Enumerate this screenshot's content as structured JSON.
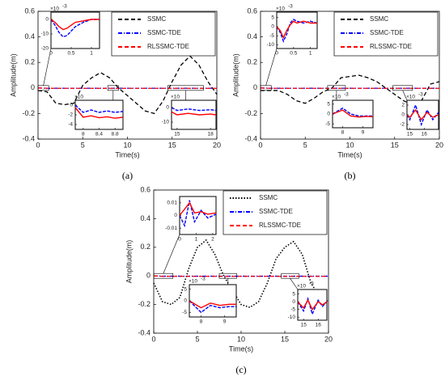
{
  "chart_data": [
    {
      "type": "line",
      "label": "(a)",
      "xlabel": "Time(s)",
      "ylabel": "Amplitude(m)",
      "x": [
        0,
        1,
        2,
        3,
        4,
        5,
        6,
        7,
        8,
        9,
        10,
        11,
        12,
        13,
        14,
        15,
        16,
        17,
        18,
        19,
        20
      ],
      "series": [
        {
          "name": "SSMC",
          "color": "#000000",
          "dash": "dashed",
          "values": [
            -0.02,
            -0.03,
            -0.12,
            -0.13,
            -0.12,
            0.02,
            0.08,
            0.12,
            0.08,
            0.0,
            -0.06,
            -0.12,
            -0.18,
            -0.2,
            -0.1,
            0.05,
            0.18,
            0.25,
            0.18,
            0.05,
            -0.05
          ]
        },
        {
          "name": "SSMC-TDE",
          "color": "#0000ff",
          "dash": "dashdot",
          "values": [
            0,
            -0.003,
            -0.002,
            -0.002,
            -0.002,
            -0.002,
            -0.002,
            -0.002,
            -0.002,
            -0.002,
            -0.002,
            -0.002,
            -0.002,
            -0.002,
            -0.002,
            -0.002,
            -0.002,
            -0.002,
            -0.002,
            -0.002,
            -0.002
          ]
        },
        {
          "name": "RLSSMC-TDE",
          "color": "#ff0000",
          "dash": "dashed",
          "values": [
            0,
            -0.002,
            -0.003,
            -0.003,
            -0.003,
            -0.003,
            -0.003,
            -0.003,
            -0.003,
            -0.003,
            -0.003,
            -0.003,
            -0.003,
            -0.003,
            -0.003,
            -0.003,
            -0.003,
            -0.003,
            -0.003,
            -0.003,
            -0.003
          ]
        }
      ],
      "xlim": [
        0,
        20
      ],
      "ylim": [
        -0.4,
        0.6
      ],
      "xticks": [
        0,
        5,
        10,
        15,
        20
      ],
      "yticks": [
        0.6,
        0.4,
        0.2,
        0,
        -0.2,
        -0.4
      ],
      "legend": "upper right",
      "insets": [
        {
          "xlim": [
            0,
            1.2
          ],
          "ylim": [
            -20,
            5
          ],
          "xticks": [
            0,
            0.5,
            1
          ],
          "yticks": [
            0,
            -10,
            -20
          ],
          "multiplier": "×10",
          "exponent": "-3",
          "x": [
            0,
            0.1,
            0.2,
            0.3,
            0.4,
            0.5,
            0.6,
            0.8,
            1,
            1.2
          ],
          "series": [
            {
              "name": "SSMC-TDE",
              "color": "#0000ff",
              "values": [
                0,
                -4,
                -9,
                -12,
                -11,
                -8,
                -5,
                -2,
                0,
                0
              ]
            },
            {
              "name": "RLSSMC-TDE",
              "color": "#ff0000",
              "values": [
                0,
                -2,
                -5,
                -7,
                -6,
                -4,
                -2,
                -1,
                0,
                0
              ]
            }
          ]
        },
        {
          "xlim": [
            7.8,
            9
          ],
          "ylim": [
            -5,
            1
          ],
          "xticks": [
            8,
            8.4,
            8.8
          ],
          "yticks": [
            0,
            -2,
            -4
          ],
          "multiplier": "×10",
          "x": [
            7.8,
            8,
            8.2,
            8.4,
            8.6,
            8.8,
            9
          ],
          "series": [
            {
              "name": "SSMC-TDE",
              "color": "#0000ff",
              "values": [
                0,
                -1.5,
                -1,
                -1.5,
                -1.2,
                -1.5,
                -1.3
              ]
            },
            {
              "name": "RLSSMC-TDE",
              "color": "#ff0000",
              "values": [
                -0.5,
                -2.5,
                -2.2,
                -2.6,
                -2.4,
                -2.7,
                -2.5
              ]
            }
          ]
        },
        {
          "xlim": [
            14.5,
            18.5
          ],
          "ylim": [
            -15,
            5
          ],
          "xticks": [
            15,
            18
          ],
          "yticks": [
            0,
            -10
          ],
          "multiplier": "×10",
          "x": [
            14.5,
            15,
            16,
            17,
            18,
            18.5
          ],
          "series": [
            {
              "name": "SSMC-TDE",
              "color": "#0000ff",
              "values": [
                0,
                -2,
                -1,
                -2,
                -1.5,
                -2
              ]
            },
            {
              "name": "RLSSMC-TDE",
              "color": "#ff0000",
              "values": [
                -3,
                -5,
                -4,
                -5,
                -4.5,
                -5
              ]
            }
          ]
        }
      ]
    },
    {
      "type": "line",
      "label": "(b)",
      "xlabel": "Time(s)",
      "ylabel": "Amplitude(m)",
      "x": [
        0,
        1,
        2,
        3,
        4,
        5,
        6,
        7,
        8,
        9,
        10,
        11,
        12,
        13,
        14,
        15,
        16,
        17,
        18,
        19,
        20
      ],
      "series": [
        {
          "name": "SSMC",
          "color": "#000000",
          "dash": "dashed",
          "values": [
            -0.02,
            -0.02,
            -0.02,
            -0.05,
            -0.1,
            -0.12,
            -0.08,
            -0.03,
            0.0,
            0.08,
            0.09,
            0.1,
            0.08,
            0.05,
            0.0,
            -0.05,
            -0.1,
            -0.13,
            -0.1,
            0.03,
            0.05
          ]
        },
        {
          "name": "SSMC-TDE",
          "color": "#0000ff",
          "dash": "dashdot",
          "values": [
            0,
            -0.002,
            -0.002,
            -0.002,
            -0.002,
            -0.002,
            -0.002,
            -0.002,
            -0.002,
            -0.002,
            -0.002,
            -0.002,
            -0.002,
            -0.002,
            -0.002,
            -0.002,
            -0.002,
            -0.002,
            -0.002,
            -0.002,
            -0.002
          ]
        },
        {
          "name": "RLSSMC-TDE",
          "color": "#ff0000",
          "dash": "dashed",
          "values": [
            0,
            -0.003,
            -0.003,
            -0.003,
            -0.003,
            -0.003,
            -0.003,
            -0.003,
            -0.003,
            -0.003,
            -0.003,
            -0.003,
            -0.003,
            -0.003,
            -0.003,
            -0.003,
            -0.003,
            -0.003,
            -0.003,
            -0.003,
            -0.003
          ]
        }
      ],
      "xlim": [
        0,
        20
      ],
      "ylim": [
        -0.4,
        0.6
      ],
      "xticks": [
        0,
        5,
        10,
        15,
        20
      ],
      "yticks": [
        0.6,
        0.4,
        0.2,
        0,
        -0.2,
        -0.4
      ],
      "legend": "upper right",
      "insets": [
        {
          "xlim": [
            0,
            1.2
          ],
          "ylim": [
            -12,
            8
          ],
          "xticks": [
            0,
            0.5,
            1
          ],
          "yticks": [
            5,
            0,
            -5,
            -10
          ],
          "multiplier": "×10",
          "exponent": "-3",
          "x": [
            0,
            0.1,
            0.2,
            0.3,
            0.4,
            0.5,
            0.6,
            0.8,
            1,
            1.2
          ],
          "series": [
            {
              "name": "SSMC-TDE",
              "color": "#0000ff",
              "values": [
                0,
                -3,
                -8,
                -4,
                2,
                4,
                3,
                2,
                3,
                2
              ]
            },
            {
              "name": "RLSSMC-TDE",
              "color": "#ff0000",
              "values": [
                0,
                -2,
                -6,
                -2,
                1,
                3,
                2,
                3,
                2,
                2
              ]
            }
          ]
        },
        {
          "xlim": [
            7.5,
            9.5
          ],
          "ylim": [
            -7,
            7
          ],
          "xticks": [
            8,
            9
          ],
          "yticks": [
            5,
            0,
            -5
          ],
          "multiplier": "×10",
          "exponent": "-3",
          "x": [
            7.5,
            8,
            8.4,
            8.8,
            9.2,
            9.5
          ],
          "series": [
            {
              "name": "SSMC-TDE",
              "color": "#0000ff",
              "values": [
                0,
                3,
                0,
                -1,
                -1,
                -1
              ]
            },
            {
              "name": "RLSSMC-TDE",
              "color": "#ff0000",
              "values": [
                0,
                2,
                -1,
                -1.5,
                -1.2,
                -1.4
              ]
            }
          ]
        },
        {
          "xlim": [
            14.8,
            17
          ],
          "ylim": [
            -3,
            3
          ],
          "xticks": [
            15,
            16
          ],
          "yticks": [
            2,
            0,
            -2
          ],
          "multiplier": "×10",
          "exponent": "-3",
          "x": [
            14.8,
            15,
            15.4,
            15.8,
            16.2,
            16.6,
            17
          ],
          "series": [
            {
              "name": "SSMC-TDE",
              "color": "#0000ff",
              "values": [
                0,
                -1,
                2,
                -2,
                1,
                -1,
                0.5
              ]
            },
            {
              "name": "RLSSMC-TDE",
              "color": "#ff0000",
              "values": [
                0,
                -0.5,
                1,
                -1,
                0.5,
                -0.5,
                0
              ]
            }
          ]
        }
      ]
    },
    {
      "type": "line",
      "label": "(c)",
      "xlabel": "Time(s)",
      "ylabel": "Amplitude(m)",
      "x": [
        0,
        1,
        2,
        3,
        4,
        5,
        6,
        7,
        8,
        9,
        10,
        11,
        12,
        13,
        14,
        15,
        16,
        17,
        18,
        19,
        20
      ],
      "series": [
        {
          "name": "SSMC",
          "color": "#000000",
          "dash": "dotted",
          "values": [
            -0.05,
            -0.18,
            -0.2,
            -0.15,
            0.05,
            0.2,
            0.25,
            0.15,
            0.0,
            -0.1,
            -0.2,
            -0.22,
            -0.18,
            -0.05,
            0.12,
            0.2,
            0.24,
            0.15,
            -0.05,
            -0.15,
            -0.18
          ]
        },
        {
          "name": "SSMC-TDE",
          "color": "#0000ff",
          "dash": "dashdot",
          "values": [
            0,
            -0.002,
            -0.002,
            -0.002,
            -0.002,
            -0.002,
            -0.002,
            -0.002,
            -0.002,
            -0.002,
            -0.002,
            -0.002,
            -0.002,
            -0.002,
            -0.002,
            -0.002,
            -0.002,
            -0.002,
            -0.002,
            -0.002,
            -0.002
          ]
        },
        {
          "name": "RLSSMC-TDE",
          "color": "#ff0000",
          "dash": "dashed",
          "values": [
            0,
            -0.003,
            -0.003,
            -0.003,
            -0.003,
            -0.003,
            -0.003,
            -0.003,
            -0.003,
            -0.003,
            -0.003,
            -0.003,
            -0.003,
            -0.003,
            -0.003,
            -0.003,
            -0.003,
            -0.003,
            -0.003,
            -0.003,
            -0.003
          ]
        }
      ],
      "xlim": [
        0,
        20
      ],
      "ylim": [
        -0.4,
        0.6
      ],
      "xticks": [
        0,
        5,
        10,
        15,
        20
      ],
      "yticks": [
        0.6,
        0.4,
        0.2,
        0,
        -0.2,
        -0.4
      ],
      "legend": "upper right",
      "insets": [
        {
          "xlim": [
            0,
            2.2
          ],
          "ylim": [
            -0.015,
            0.015
          ],
          "xticks": [
            0,
            1,
            2
          ],
          "yticks": [
            0.01,
            0,
            -0.01
          ],
          "x": [
            0,
            0.3,
            0.6,
            0.9,
            1.3,
            1.7,
            2.2
          ],
          "series": [
            {
              "name": "SSMC-TDE",
              "color": "#0000ff",
              "values": [
                0,
                -0.008,
                0.012,
                -0.005,
                0.004,
                -0.002,
                0.001
              ]
            },
            {
              "name": "RLSSMC-TDE",
              "color": "#ff0000",
              "values": [
                0,
                0.005,
                0.01,
                0.002,
                0.003,
                0.001,
                0.002
              ]
            }
          ]
        },
        {
          "xlim": [
            7.5,
            9.5
          ],
          "ylim": [
            -7,
            7
          ],
          "xticks": [
            8,
            9
          ],
          "yticks": [
            5,
            0,
            -5
          ],
          "multiplier": "×10",
          "exponent": "-3",
          "x": [
            7.5,
            8,
            8.4,
            8.8,
            9.2,
            9.5
          ],
          "series": [
            {
              "name": "SSMC-TDE",
              "color": "#0000ff",
              "values": [
                0,
                -5,
                -2,
                -3,
                -2.5,
                -2.5
              ]
            },
            {
              "name": "RLSSMC-TDE",
              "color": "#ff0000",
              "values": [
                0,
                -3,
                -1,
                -2,
                -1.5,
                -1.5
              ]
            }
          ]
        },
        {
          "xlim": [
            14.6,
            16.6
          ],
          "ylim": [
            -12,
            8
          ],
          "xticks": [
            15,
            16
          ],
          "yticks": [
            5,
            0,
            -5,
            -10
          ],
          "multiplier": "×10",
          "exponent": "-3",
          "x": [
            14.6,
            15,
            15.3,
            15.6,
            16,
            16.3,
            16.6
          ],
          "series": [
            {
              "name": "SSMC-TDE",
              "color": "#0000ff",
              "values": [
                0,
                -6,
                2,
                -8,
                1,
                -3,
                0
              ]
            },
            {
              "name": "RLSSMC-TDE",
              "color": "#ff0000",
              "values": [
                0,
                -4,
                1,
                -5,
                0,
                -2,
                0
              ]
            }
          ]
        }
      ]
    }
  ]
}
